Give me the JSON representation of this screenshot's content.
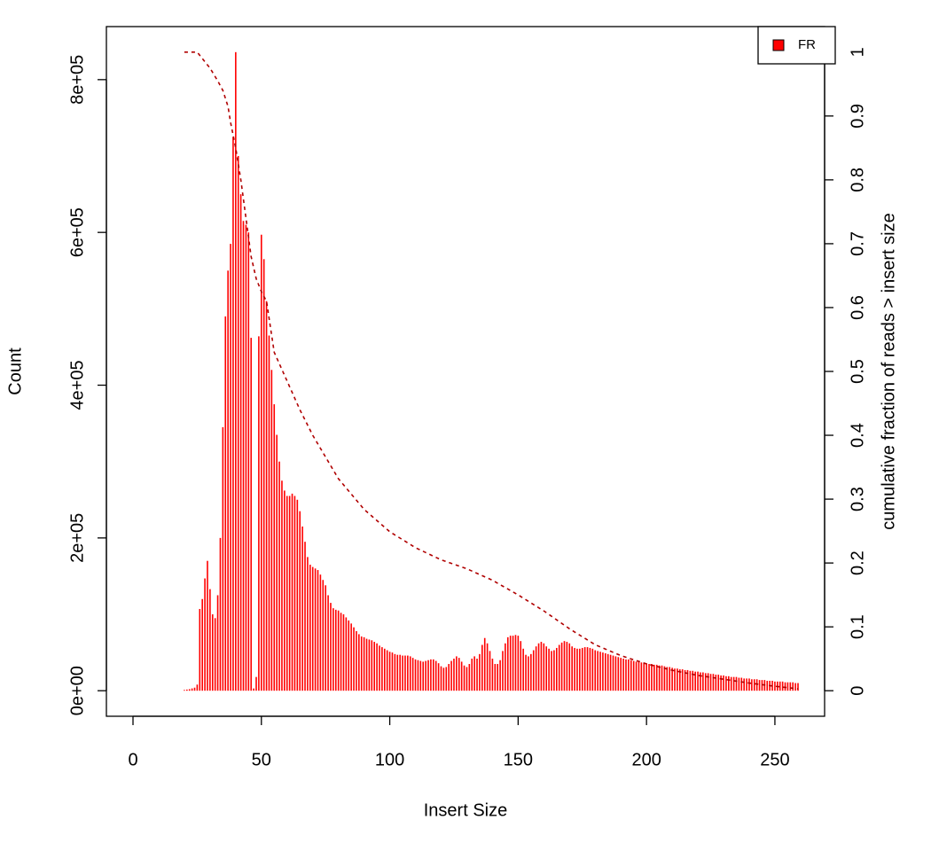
{
  "chart_data": {
    "type": "bar",
    "x_label": "Insert Size",
    "y_label": "Count",
    "y2_label": "cumulative fraction of reads > insert size",
    "legend": "topright",
    "xlim": [
      -10.36,
      269.36
    ],
    "ylim": [
      -33440,
      869440
    ],
    "y2lim": [
      -0.04,
      1.04
    ],
    "xticks": [
      0,
      50,
      100,
      150,
      200,
      250
    ],
    "yticks": [
      {
        "value": 0,
        "label": "0e+00"
      },
      {
        "value": 200000,
        "label": "2e+05"
      },
      {
        "value": 400000,
        "label": "4e+05"
      },
      {
        "value": 600000,
        "label": "6e+05"
      },
      {
        "value": 800000,
        "label": "8e+05"
      }
    ],
    "y2ticks": [
      0,
      0.1,
      0.2,
      0.3,
      0.4,
      0.5,
      0.6,
      0.7,
      0.8,
      0.9,
      1
    ],
    "x": [
      20,
      21,
      22,
      23,
      24,
      25,
      26,
      27,
      28,
      29,
      30,
      31,
      32,
      33,
      34,
      35,
      36,
      37,
      38,
      39,
      40,
      41,
      42,
      43,
      44,
      45,
      46,
      47,
      48,
      49,
      50,
      51,
      52,
      53,
      54,
      55,
      56,
      57,
      58,
      59,
      60,
      61,
      62,
      63,
      64,
      65,
      66,
      67,
      68,
      69,
      70,
      71,
      72,
      73,
      74,
      75,
      76,
      77,
      78,
      79,
      80,
      81,
      82,
      83,
      84,
      85,
      86,
      87,
      88,
      89,
      90,
      91,
      92,
      93,
      94,
      95,
      96,
      97,
      98,
      99,
      100,
      101,
      102,
      103,
      104,
      105,
      106,
      107,
      108,
      109,
      110,
      111,
      112,
      113,
      114,
      115,
      116,
      117,
      118,
      119,
      120,
      121,
      122,
      123,
      124,
      125,
      126,
      127,
      128,
      129,
      130,
      131,
      132,
      133,
      134,
      135,
      136,
      137,
      138,
      139,
      140,
      141,
      142,
      143,
      144,
      145,
      146,
      147,
      148,
      149,
      150,
      151,
      152,
      153,
      154,
      155,
      156,
      157,
      158,
      159,
      160,
      161,
      162,
      163,
      164,
      165,
      166,
      167,
      168,
      169,
      170,
      171,
      172,
      173,
      174,
      175,
      176,
      177,
      178,
      179,
      180,
      181,
      182,
      183,
      184,
      185,
      186,
      187,
      188,
      189,
      190,
      191,
      192,
      193,
      194,
      195,
      196,
      197,
      198,
      199,
      200,
      201,
      202,
      203,
      204,
      205,
      206,
      207,
      208,
      209,
      210,
      211,
      212,
      213,
      214,
      215,
      216,
      217,
      218,
      219,
      220,
      221,
      222,
      223,
      224,
      225,
      226,
      227,
      228,
      229,
      230,
      231,
      232,
      233,
      234,
      235,
      236,
      237,
      238,
      239,
      240,
      241,
      242,
      243,
      244,
      245,
      246,
      247,
      248,
      249,
      250,
      251,
      252,
      253,
      254,
      255,
      256,
      257,
      258,
      259
    ],
    "series": [
      {
        "name": "FR",
        "color": "#ff0000",
        "values": [
          1000,
          1500,
          2000,
          3000,
          4000,
          8000,
          107000,
          120000,
          147000,
          170000,
          133000,
          100000,
          95000,
          125000,
          200000,
          345000,
          490000,
          550000,
          585000,
          725000,
          836000,
          700000,
          650000,
          615000,
          610000,
          600000,
          462000,
          3000,
          18000,
          464000,
          597000,
          565000,
          510000,
          465000,
          420000,
          375000,
          335000,
          300000,
          275000,
          262000,
          255000,
          255000,
          258000,
          255000,
          250000,
          235000,
          215000,
          195000,
          175000,
          165000,
          162000,
          160000,
          158000,
          152000,
          145000,
          138000,
          125000,
          115000,
          108000,
          106000,
          105000,
          102000,
          100000,
          96000,
          92000,
          88000,
          83000,
          78000,
          74000,
          71000,
          70000,
          68000,
          67000,
          66000,
          64000,
          62000,
          59000,
          57000,
          55000,
          53000,
          51000,
          50000,
          48000,
          47000,
          47000,
          46000,
          46000,
          46000,
          45000,
          43000,
          41000,
          40000,
          39000,
          38000,
          39000,
          40000,
          41000,
          41000,
          39000,
          36000,
          32000,
          30000,
          31000,
          35000,
          39000,
          42000,
          45000,
          43000,
          38000,
          33000,
          31000,
          35000,
          42000,
          45000,
          42000,
          48000,
          60000,
          69000,
          62000,
          52000,
          42000,
          35000,
          35000,
          40000,
          52000,
          62000,
          70000,
          72000,
          72000,
          73000,
          72000,
          65000,
          55000,
          47000,
          45000,
          48000,
          53000,
          58000,
          62000,
          64000,
          62000,
          58000,
          55000,
          52000,
          53000,
          56000,
          60000,
          63000,
          65000,
          64000,
          62000,
          58000,
          56000,
          55000,
          55000,
          56000,
          57000,
          57000,
          56000,
          55000,
          53000,
          52000,
          51000,
          50000,
          49000,
          48000,
          47000,
          46000,
          45000,
          44000,
          43000,
          42000,
          41000,
          41000,
          40000,
          39000,
          38000,
          38000,
          37000,
          36000,
          36000,
          35000,
          35000,
          34000,
          34000,
          33000,
          33000,
          32000,
          31000,
          31000,
          30000,
          29000,
          29000,
          28000,
          28000,
          27000,
          27000,
          26000,
          26000,
          25000,
          25000,
          24000,
          24000,
          23000,
          23000,
          22000,
          22000,
          21000,
          21000,
          20000,
          20000,
          19000,
          19000,
          18000,
          18000,
          18000,
          17000,
          17000,
          16000,
          16000,
          16000,
          15000,
          15000,
          15000,
          14000,
          14000,
          14000,
          13000,
          13000,
          13000,
          12000,
          12000,
          12000,
          12000,
          11000,
          11000,
          11000,
          11000,
          10000,
          10000
        ]
      },
      {
        "type": "line",
        "axis": "y2",
        "color": "#b00000",
        "x": [
          20,
          25,
          27,
          30,
          33,
          35,
          37,
          38,
          40,
          42,
          44,
          46,
          48,
          50,
          52,
          55,
          60,
          65,
          70,
          80,
          90,
          100,
          110,
          120,
          130,
          140,
          150,
          160,
          170,
          180,
          190,
          200,
          210,
          220,
          230,
          240,
          250,
          259
        ],
        "values": [
          1,
          1,
          0.99,
          0.975,
          0.955,
          0.94,
          0.915,
          0.89,
          0.85,
          0.8,
          0.74,
          0.68,
          0.645,
          0.625,
          0.61,
          0.53,
          0.485,
          0.44,
          0.4,
          0.332,
          0.284,
          0.249,
          0.224,
          0.205,
          0.191,
          0.173,
          0.15,
          0.125,
          0.097,
          0.072,
          0.055,
          0.042,
          0.032,
          0.024,
          0.018,
          0.012,
          0.007,
          0.003
        ]
      }
    ]
  }
}
